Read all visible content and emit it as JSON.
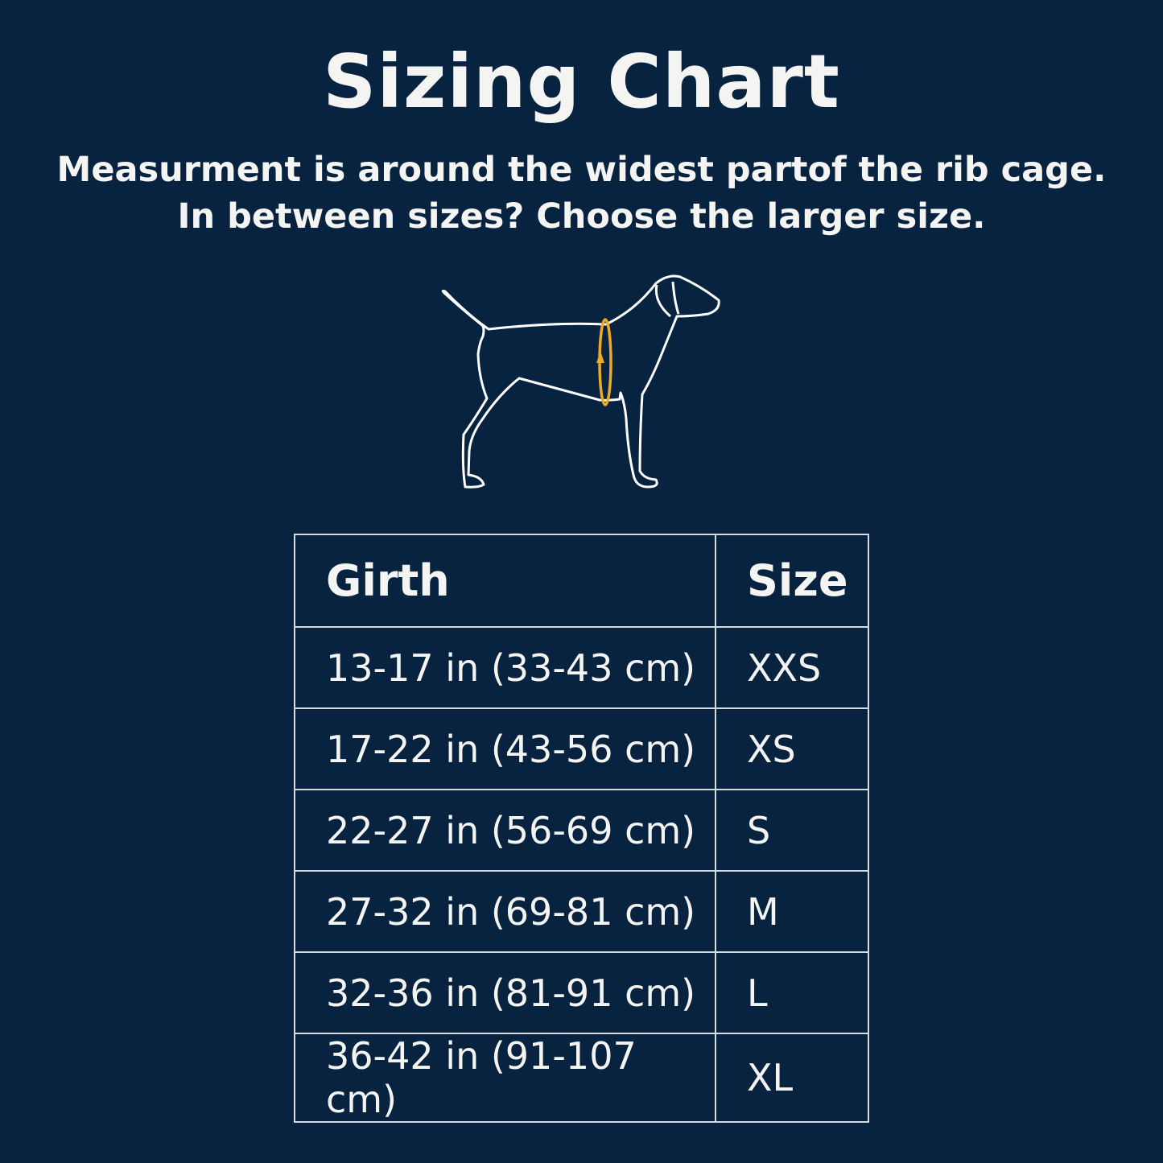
{
  "title": "Sizing Chart",
  "subtitle_lines": [
    "Measurment is around the widest partof the rib cage.",
    "In between sizes? Choose the larger size."
  ],
  "illustration": {
    "icon": "dog-girth-measurement-icon",
    "outline_color": "#ffffff",
    "accent_color": "#f0a926"
  },
  "colors": {
    "background": "#08233f",
    "text": "#f4f4f2",
    "border": "#d8dbe0"
  },
  "chart_data": {
    "type": "table",
    "columns": [
      "Girth",
      "Size"
    ],
    "rows": [
      [
        "13-17 in (33-43 cm)",
        "XXS"
      ],
      [
        "17-22 in (43-56 cm)",
        "XS"
      ],
      [
        "22-27 in (56-69 cm)",
        "S"
      ],
      [
        "27-32 in (69-81 cm)",
        "M"
      ],
      [
        "32-36 in (81-91 cm)",
        "L"
      ],
      [
        "36-42 in (91-107 cm)",
        "XL"
      ]
    ]
  }
}
